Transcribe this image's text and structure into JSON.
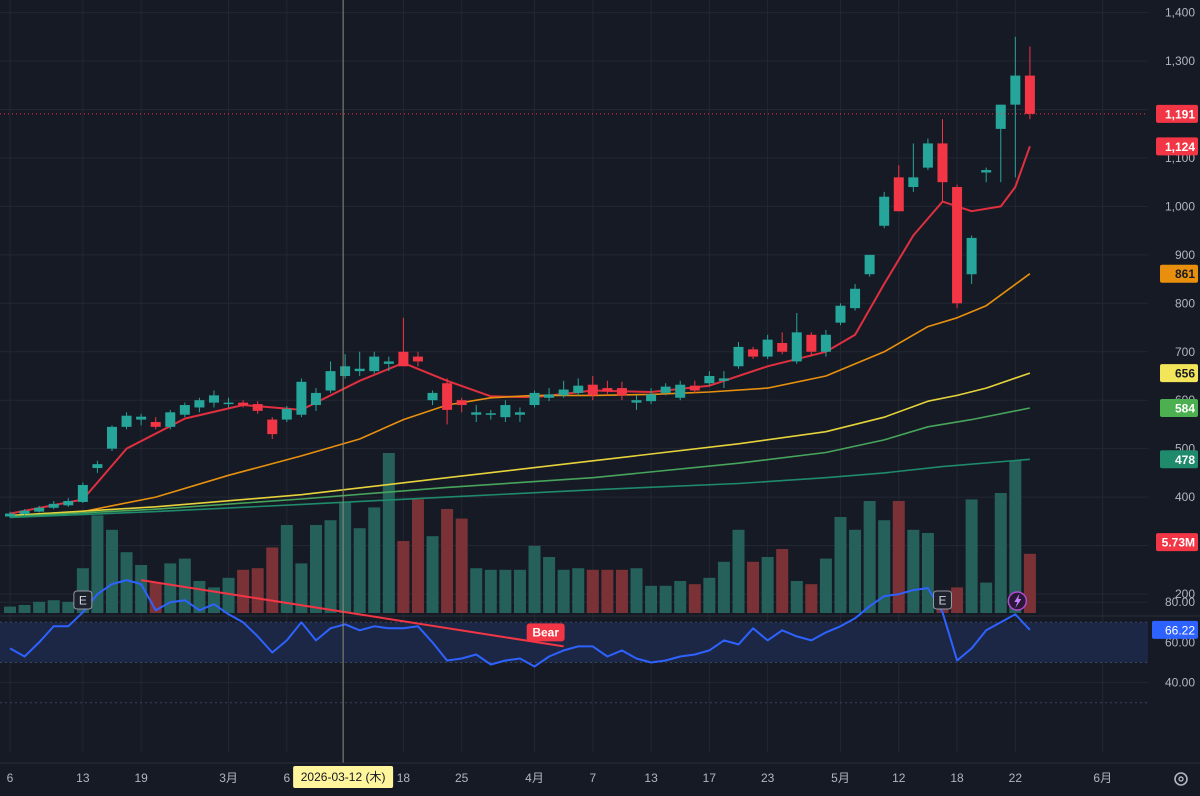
{
  "colors": {
    "background": "#161a25",
    "grid": "#232733",
    "up": "#26a69a",
    "down": "#f23645",
    "volume_up": "#26605a",
    "volume_down": "#7a3237",
    "ma_fast": "#e0303f",
    "ma_orange": "#e8900e",
    "ma_yellow": "#e6d33c",
    "ma_green": "#47a55b",
    "ma_teal": "#1f8a6c",
    "rsi_line": "#2e62ff",
    "rsi_band": "#1b2744",
    "divergence": "#f23645"
  },
  "price_axis": {
    "ticks": [
      "1,400",
      "1,300",
      "1,200",
      "1,100",
      "1,000",
      "900",
      "800",
      "700",
      "600",
      "500",
      "400",
      "300",
      "200"
    ]
  },
  "price_badges": [
    {
      "value": 1191,
      "label": "1,191",
      "color": "#f23645",
      "text_color": "#ffffff"
    },
    {
      "value": 1124,
      "label": "1,124",
      "color": "#f23645",
      "text_color": "#ffffff"
    },
    {
      "value": 861,
      "label": "861",
      "color": "#e8900e",
      "text_color": "#161a25"
    },
    {
      "value": 656,
      "label": "656",
      "color": "#f3e55a",
      "text_color": "#161a25"
    },
    {
      "value": 584,
      "label": "584",
      "color": "#4caf50",
      "text_color": "#ffffff"
    },
    {
      "value": 478,
      "label": "478",
      "color": "#1f8a6c",
      "text_color": "#ffffff"
    },
    {
      "value": 307,
      "label": "5.73M",
      "color": "#f23645",
      "text_color": "#ffffff"
    }
  ],
  "rsi_axis": {
    "ticks": [
      "80.00",
      "60.00",
      "40.00"
    ],
    "current_label": "66.22",
    "current_color": "#2e62ff"
  },
  "time_axis": {
    "labels": [
      {
        "text": "6",
        "bar": 0
      },
      {
        "text": "13",
        "bar": 5
      },
      {
        "text": "19",
        "bar": 9
      },
      {
        "text": "3月",
        "bar": 15
      },
      {
        "text": "6",
        "bar": 19
      },
      {
        "text": "18",
        "bar": 27
      },
      {
        "text": "25",
        "bar": 31
      },
      {
        "text": "4月",
        "bar": 36
      },
      {
        "text": "7",
        "bar": 40
      },
      {
        "text": "13",
        "bar": 44
      },
      {
        "text": "17",
        "bar": 48
      },
      {
        "text": "23",
        "bar": 52
      },
      {
        "text": "5月",
        "bar": 57
      },
      {
        "text": "12",
        "bar": 61
      },
      {
        "text": "18",
        "bar": 65
      },
      {
        "text": "22",
        "bar": 69
      },
      {
        "text": "6月",
        "bar": 75
      }
    ],
    "crosshair_label": "2026-03-12 (木)",
    "crosshair_bar": 23
  },
  "markers": {
    "earnings": [
      {
        "text": "E",
        "bar": 5
      },
      {
        "text": "E",
        "bar": 64
      }
    ],
    "lightning_bar": 69,
    "bear_label": "Bear"
  },
  "chart_data": {
    "type": "candlestick",
    "ohlc": [
      [
        360,
        370,
        358,
        366
      ],
      [
        365,
        375,
        362,
        372
      ],
      [
        370,
        382,
        368,
        378
      ],
      [
        378,
        392,
        375,
        386
      ],
      [
        383,
        398,
        380,
        392
      ],
      [
        390,
        430,
        388,
        425
      ],
      [
        460,
        475,
        450,
        468
      ],
      [
        500,
        548,
        495,
        545
      ],
      [
        545,
        575,
        540,
        568
      ],
      [
        560,
        572,
        548,
        566
      ],
      [
        555,
        565,
        540,
        545
      ],
      [
        545,
        580,
        540,
        575
      ],
      [
        570,
        595,
        565,
        590
      ],
      [
        585,
        605,
        575,
        600
      ],
      [
        595,
        620,
        585,
        610
      ],
      [
        595,
        605,
        585,
        595
      ],
      [
        595,
        600,
        585,
        590
      ],
      [
        592,
        598,
        572,
        578
      ],
      [
        560,
        565,
        520,
        530
      ],
      [
        560,
        588,
        555,
        582
      ],
      [
        570,
        645,
        565,
        638
      ],
      [
        590,
        625,
        578,
        615
      ],
      [
        620,
        680,
        615,
        660
      ],
      [
        650,
        695,
        645,
        670
      ],
      [
        660,
        700,
        650,
        665
      ],
      [
        660,
        700,
        655,
        690
      ],
      [
        675,
        690,
        660,
        680
      ],
      [
        700,
        770,
        675,
        670
      ],
      [
        690,
        700,
        670,
        680
      ],
      [
        600,
        620,
        590,
        615
      ],
      [
        635,
        645,
        550,
        580
      ],
      [
        600,
        605,
        575,
        590
      ],
      [
        570,
        590,
        555,
        575
      ],
      [
        570,
        580,
        560,
        573
      ],
      [
        565,
        600,
        555,
        590
      ],
      [
        570,
        585,
        555,
        575
      ],
      [
        590,
        620,
        585,
        615
      ],
      [
        605,
        625,
        598,
        612
      ],
      [
        610,
        640,
        605,
        622
      ],
      [
        615,
        645,
        610,
        630
      ],
      [
        632,
        650,
        600,
        610
      ],
      [
        625,
        640,
        610,
        618
      ],
      [
        625,
        638,
        600,
        610
      ],
      [
        595,
        610,
        580,
        600
      ],
      [
        598,
        625,
        592,
        612
      ],
      [
        615,
        635,
        610,
        628
      ],
      [
        605,
        640,
        600,
        632
      ],
      [
        630,
        640,
        615,
        620
      ],
      [
        635,
        660,
        630,
        650
      ],
      [
        640,
        660,
        625,
        645
      ],
      [
        670,
        720,
        665,
        710
      ],
      [
        705,
        710,
        685,
        690
      ],
      [
        690,
        735,
        685,
        725
      ],
      [
        718,
        740,
        695,
        700
      ],
      [
        680,
        780,
        675,
        740
      ],
      [
        735,
        740,
        690,
        700
      ],
      [
        700,
        745,
        690,
        735
      ],
      [
        760,
        800,
        755,
        795
      ],
      [
        790,
        840,
        785,
        830
      ],
      [
        860,
        900,
        855,
        900
      ],
      [
        960,
        1030,
        955,
        1020
      ],
      [
        1060,
        1085,
        990,
        990
      ],
      [
        1040,
        1130,
        1030,
        1060
      ],
      [
        1080,
        1140,
        1075,
        1130
      ],
      [
        1130,
        1180,
        1010,
        1050
      ],
      [
        1040,
        1045,
        790,
        800
      ],
      [
        860,
        940,
        840,
        935
      ],
      [
        1070,
        1080,
        1050,
        1075
      ],
      [
        1160,
        1200,
        1050,
        1210
      ],
      [
        1210,
        1350,
        1060,
        1270
      ],
      [
        1270,
        1330,
        1180,
        1191
      ]
    ],
    "volume_relative": [
      0.04,
      0.05,
      0.07,
      0.08,
      0.07,
      0.28,
      0.61,
      0.52,
      0.38,
      0.3,
      0.19,
      0.31,
      0.34,
      0.2,
      0.16,
      0.22,
      0.27,
      0.28,
      0.41,
      0.55,
      0.31,
      0.55,
      0.58,
      0.69,
      0.53,
      0.66,
      1.0,
      0.45,
      0.71,
      0.48,
      0.65,
      0.59,
      0.28,
      0.27,
      0.27,
      0.27,
      0.42,
      0.35,
      0.27,
      0.28,
      0.27,
      0.27,
      0.27,
      0.28,
      0.17,
      0.17,
      0.2,
      0.18,
      0.22,
      0.32,
      0.52,
      0.32,
      0.35,
      0.4,
      0.2,
      0.18,
      0.34,
      0.6,
      0.52,
      0.7,
      0.58,
      0.7,
      0.52,
      0.5,
      0.1,
      0.16,
      0.71,
      0.19,
      0.75,
      0.95,
      0.37
    ],
    "ma_series": [
      {
        "color_key": "ma_fast",
        "points": [
          [
            0,
            366
          ],
          [
            5,
            395
          ],
          [
            8,
            500
          ],
          [
            12,
            562
          ],
          [
            16,
            590
          ],
          [
            20,
            580
          ],
          [
            24,
            640
          ],
          [
            27,
            677
          ],
          [
            30,
            640
          ],
          [
            33,
            608
          ],
          [
            36,
            606
          ],
          [
            40,
            620
          ],
          [
            44,
            617
          ],
          [
            48,
            630
          ],
          [
            52,
            670
          ],
          [
            56,
            700
          ],
          [
            58,
            735
          ],
          [
            60,
            840
          ],
          [
            62,
            940
          ],
          [
            64,
            1010
          ],
          [
            66,
            990
          ],
          [
            68,
            1000
          ],
          [
            69,
            1040
          ],
          [
            70,
            1124
          ]
        ]
      },
      {
        "color_key": "ma_orange",
        "points": [
          [
            0,
            362
          ],
          [
            5,
            370
          ],
          [
            10,
            400
          ],
          [
            15,
            445
          ],
          [
            20,
            485
          ],
          [
            24,
            520
          ],
          [
            27,
            560
          ],
          [
            30,
            590
          ],
          [
            33,
            605
          ],
          [
            36,
            610
          ],
          [
            40,
            610
          ],
          [
            44,
            612
          ],
          [
            48,
            617
          ],
          [
            52,
            625
          ],
          [
            56,
            650
          ],
          [
            60,
            700
          ],
          [
            63,
            752
          ],
          [
            65,
            770
          ],
          [
            67,
            795
          ],
          [
            70,
            861
          ]
        ]
      },
      {
        "color_key": "ma_yellow",
        "points": [
          [
            0,
            362
          ],
          [
            10,
            380
          ],
          [
            20,
            405
          ],
          [
            30,
            440
          ],
          [
            40,
            475
          ],
          [
            50,
            510
          ],
          [
            56,
            535
          ],
          [
            60,
            565
          ],
          [
            63,
            598
          ],
          [
            65,
            610
          ],
          [
            67,
            625
          ],
          [
            70,
            656
          ]
        ]
      },
      {
        "color_key": "ma_green",
        "points": [
          [
            0,
            360
          ],
          [
            10,
            375
          ],
          [
            20,
            396
          ],
          [
            30,
            420
          ],
          [
            40,
            440
          ],
          [
            50,
            470
          ],
          [
            56,
            492
          ],
          [
            60,
            518
          ],
          [
            63,
            545
          ],
          [
            66,
            560
          ],
          [
            70,
            584
          ]
        ]
      },
      {
        "color_key": "ma_teal",
        "points": [
          [
            0,
            358
          ],
          [
            10,
            370
          ],
          [
            20,
            385
          ],
          [
            30,
            400
          ],
          [
            40,
            415
          ],
          [
            50,
            428
          ],
          [
            56,
            440
          ],
          [
            60,
            450
          ],
          [
            64,
            463
          ],
          [
            70,
            478
          ]
        ]
      }
    ],
    "rsi": [
      57,
      53,
      60,
      68,
      68,
      75,
      84,
      89,
      91,
      89,
      76,
      80,
      81,
      76,
      79,
      74,
      70,
      63,
      55,
      61,
      70,
      61,
      67,
      69,
      66,
      68,
      67,
      67,
      68,
      60,
      51,
      52,
      54,
      49,
      51,
      52,
      48,
      53,
      56,
      58,
      58,
      53,
      56,
      52,
      50,
      51,
      53,
      54,
      56,
      61,
      59,
      67,
      61,
      66,
      63,
      61,
      65,
      68,
      72,
      78,
      83,
      84,
      86,
      87,
      75,
      51,
      57,
      66,
      70,
      74,
      66.22
    ],
    "rsi_band": [
      50,
      70
    ],
    "rsi_divergence": [
      [
        9,
        91
      ],
      [
        38,
        58
      ]
    ],
    "ylim": [
      165,
      1430
    ],
    "rsi_ylim": [
      30,
      95
    ]
  }
}
